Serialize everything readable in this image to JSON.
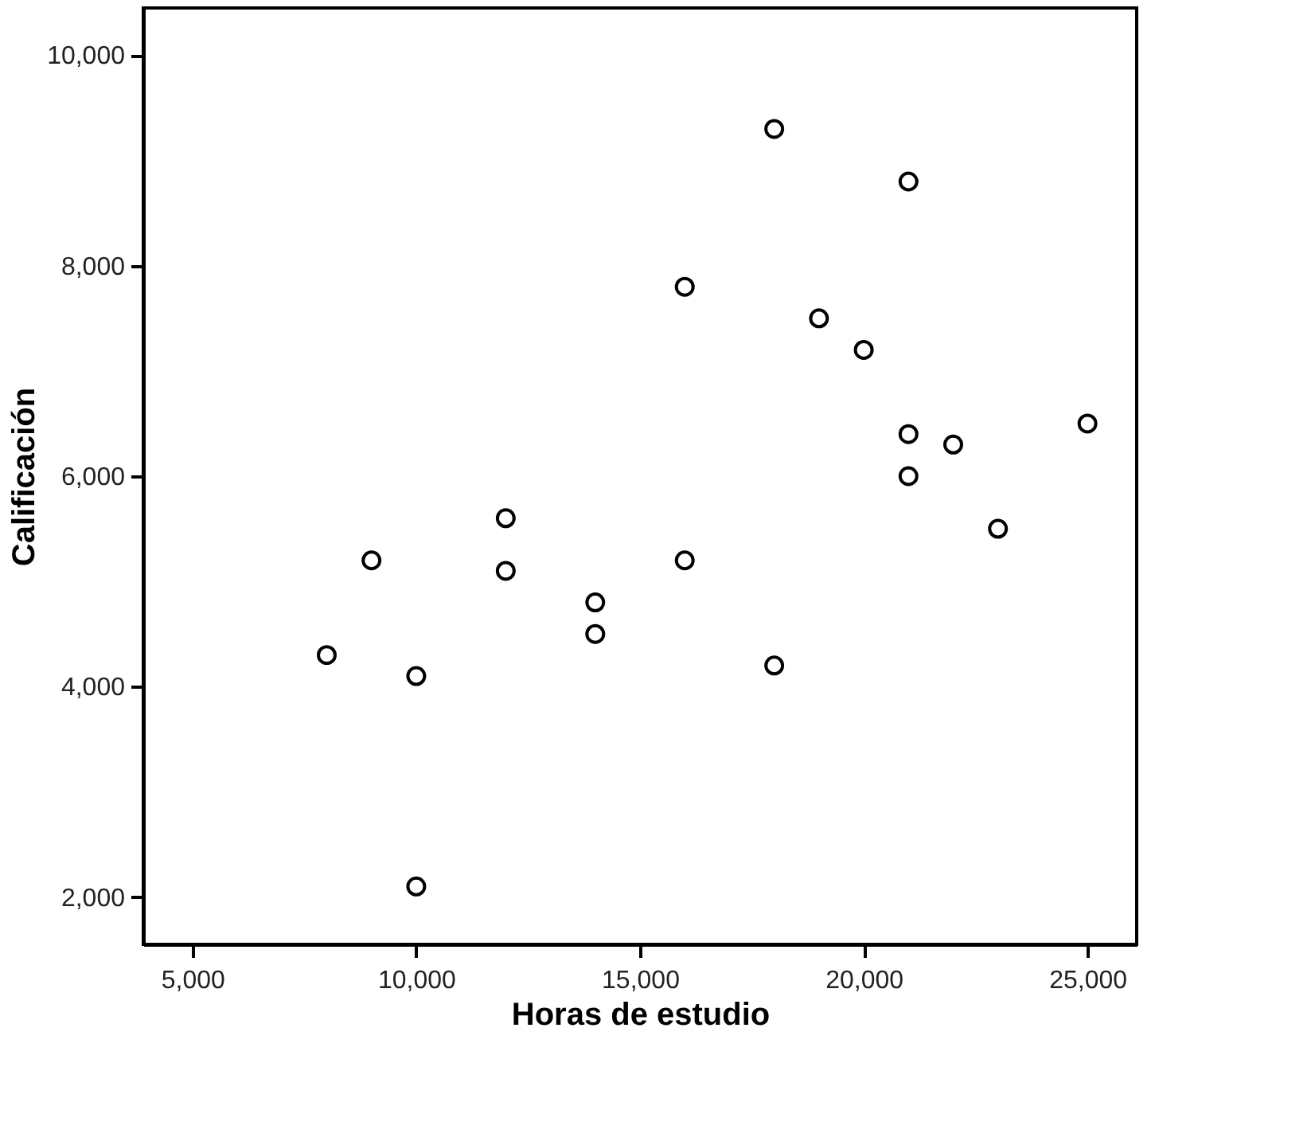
{
  "chart_data": {
    "type": "scatter",
    "xlabel": "Horas de estudio",
    "ylabel": "Calificación",
    "x": [
      8000,
      9000,
      10000,
      10000,
      12000,
      12000,
      14000,
      14000,
      16000,
      16000,
      18000,
      18000,
      19000,
      20000,
      21000,
      21000,
      21000,
      22000,
      23000,
      25000
    ],
    "series": [
      {
        "color": "#000000",
        "values": [
          4300,
          5200,
          4100,
          2100,
          5600,
          5100,
          4800,
          4500,
          7800,
          5200,
          9300,
          4200,
          7500,
          7200,
          8800,
          6400,
          6000,
          6300,
          5500,
          6500
        ]
      }
    ],
    "xlim": [
      3900,
      26100
    ],
    "ylim": [
      1550,
      10450
    ],
    "xticks": [
      {
        "value": 5000,
        "label": "5,000"
      },
      {
        "value": 10000,
        "label": "10,000"
      },
      {
        "value": 15000,
        "label": "15,000"
      },
      {
        "value": 20000,
        "label": "20,000"
      },
      {
        "value": 25000,
        "label": "25,000"
      }
    ],
    "yticks": [
      {
        "value": 2000,
        "label": "2,000"
      },
      {
        "value": 4000,
        "label": "4,000"
      },
      {
        "value": 6000,
        "label": "6,000"
      },
      {
        "value": 8000,
        "label": "8,000"
      },
      {
        "value": 10000,
        "label": "10,000"
      }
    ],
    "grid": false,
    "marker": "circle"
  }
}
